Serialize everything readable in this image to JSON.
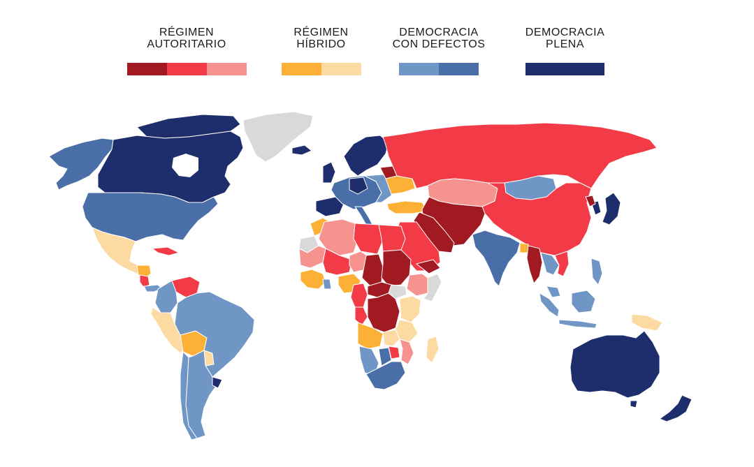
{
  "legend": [
    {
      "line1": "RÉGIMEN",
      "line2": "AUTORITARIO",
      "swatches": [
        "#a11a22",
        "#f23b46",
        "#f7938f"
      ]
    },
    {
      "line1": "RÉGIMEN",
      "line2": "HÍBRIDO",
      "swatches": [
        "#fcb035",
        "#fddaa2"
      ]
    },
    {
      "line1": "DEMOCRACIA",
      "line2": "CON DEFECTOS",
      "swatches": [
        "#6f96c4",
        "#4a6fa8"
      ]
    },
    {
      "line1": "DEMOCRACIA",
      "line2": "PLENA",
      "swatches": [
        "#1e2d6b"
      ]
    }
  ],
  "colors": {
    "auth_dark": "#a11a22",
    "auth_mid": "#f23b46",
    "auth_light": "#f7938f",
    "hyb_dark": "#fcb035",
    "hyb_light": "#fddaa2",
    "flawed_light": "#6f96c4",
    "flawed_dark": "#4a6fa8",
    "full": "#1e2d6b",
    "no_data": "#d9d9d9"
  }
}
